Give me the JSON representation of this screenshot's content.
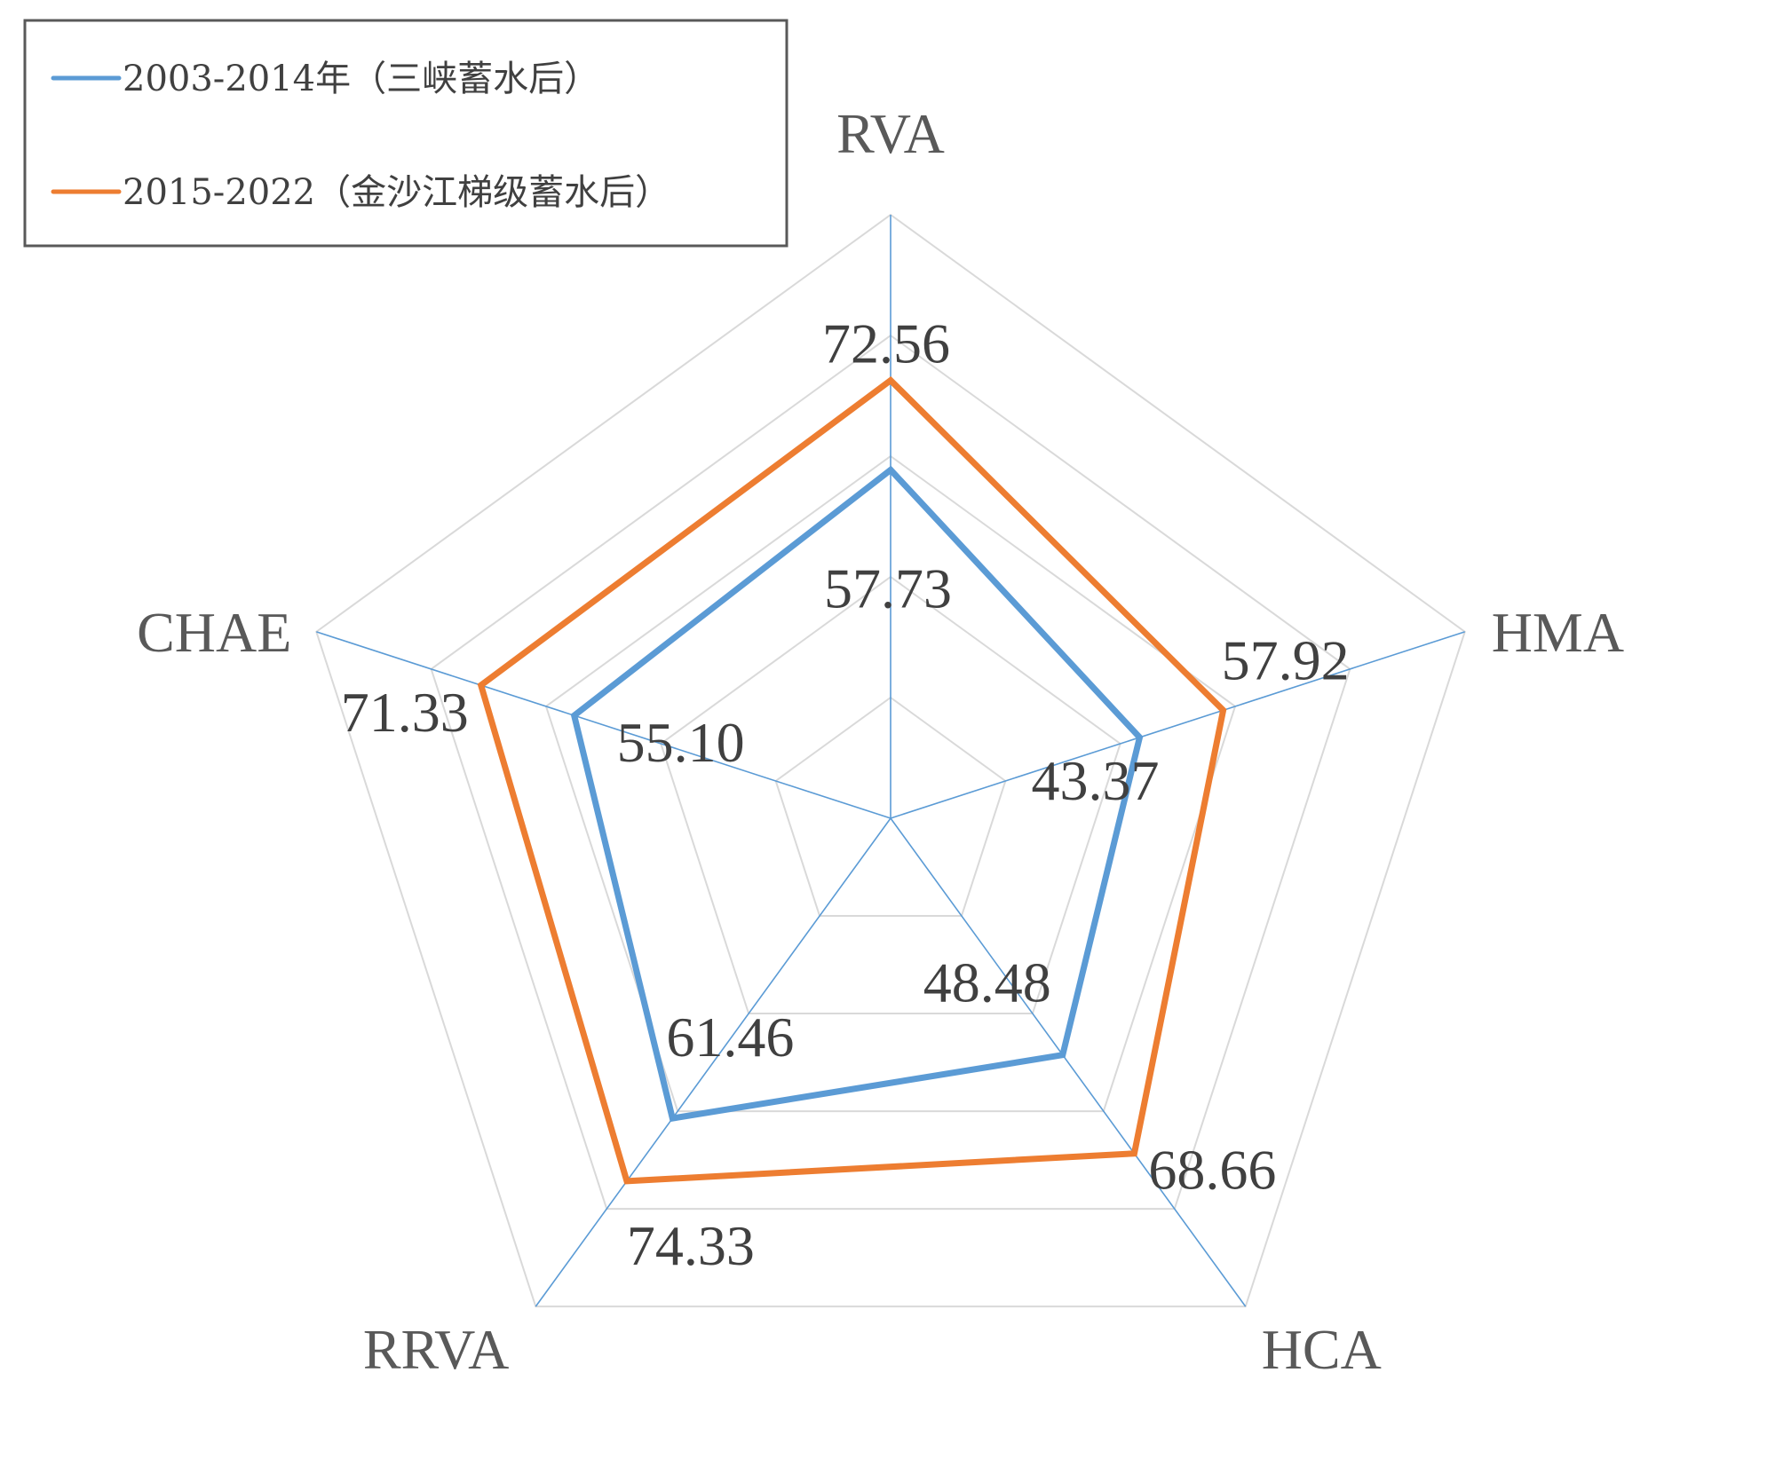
{
  "chart_data": {
    "type": "radar",
    "axes": [
      "RVA",
      "HMA",
      "HCA",
      "RRVA",
      "CHAE"
    ],
    "series": [
      {
        "name": "2003-2014年（三峡蓄水后）",
        "values": [
          57.73,
          43.37,
          48.48,
          61.46,
          55.1
        ],
        "labels": [
          "57.73",
          "43.37",
          "48.48",
          "61.46",
          "55.10"
        ],
        "color": "#5B9BD5"
      },
      {
        "name": "2015-2022（金沙江梯级蓄水后）",
        "values": [
          72.56,
          57.92,
          68.66,
          74.33,
          71.33
        ],
        "labels": [
          "72.56",
          "57.92",
          "68.66",
          "74.33",
          "71.33"
        ],
        "color": "#ED7D31"
      }
    ],
    "range": [
      0,
      100
    ],
    "gridlines": [
      20,
      40,
      60,
      80,
      100
    ],
    "grid": true,
    "legend_position": "top-left",
    "colors": {
      "grid": "#D9D9D9",
      "spoke": "#5B9BD5",
      "legend_border": "#595959"
    }
  }
}
